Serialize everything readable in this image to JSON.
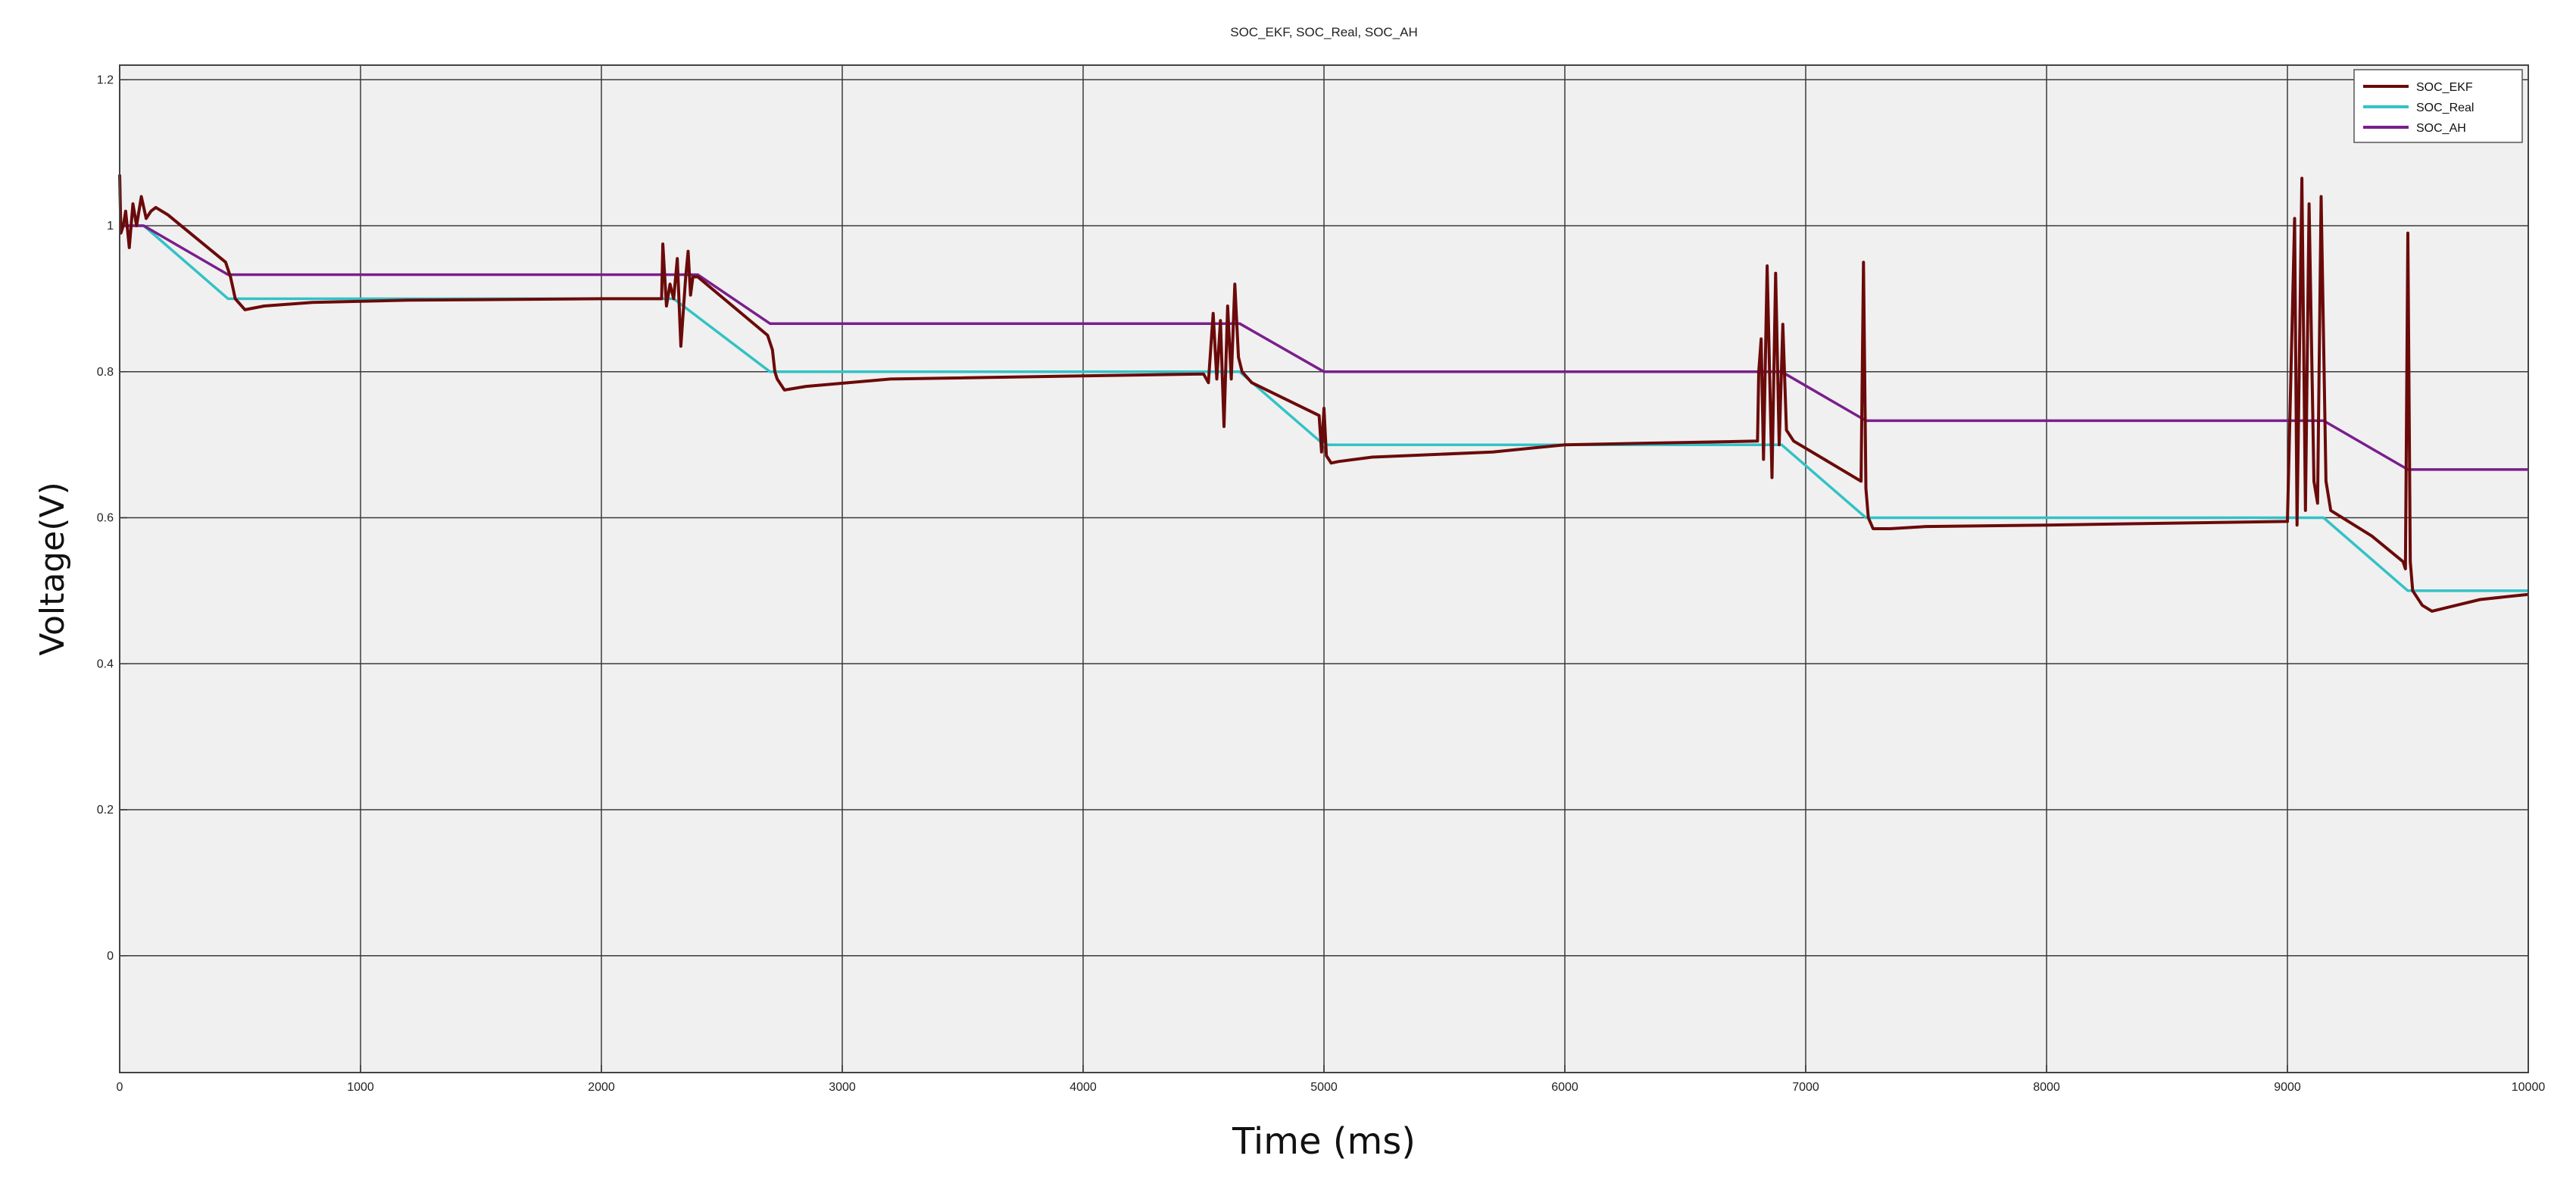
{
  "chart_data": {
    "type": "line",
    "title": "SOC_EKF, SOC_Real, SOC_AH",
    "xlabel": "Time (ms)",
    "ylabel": "Voltage(V)",
    "xlim": [
      0,
      10000
    ],
    "ylim": [
      -0.16,
      1.22
    ],
    "grid": true,
    "legend_position": "top-right",
    "x_ticks": [
      0,
      1000,
      2000,
      3000,
      4000,
      5000,
      6000,
      7000,
      8000,
      9000,
      10000
    ],
    "x_tick_labels": [
      "0",
      "1000",
      "2000",
      "3000",
      "4000",
      "5000",
      "6000",
      "7000",
      "8000",
      "9000",
      "10000"
    ],
    "y_ticks": [
      0,
      0.2,
      0.4,
      0.6,
      0.8,
      1,
      1.2
    ],
    "y_tick_labels": [
      "0",
      "0.2",
      "0.4",
      "0.6",
      "0.8",
      "1",
      "1.2"
    ],
    "series": [
      {
        "name": "SOC_Real",
        "color": "#33c2c6",
        "x": [
          0,
          100,
          450,
          2250,
          2300,
          2700,
          4500,
          4650,
          5000,
          6800,
          6900,
          7250,
          9000,
          9150,
          9500,
          10000
        ],
        "y": [
          1.0,
          1.0,
          0.9,
          0.9,
          0.9,
          0.8,
          0.8,
          0.8,
          0.7,
          0.7,
          0.7,
          0.6,
          0.6,
          0.6,
          0.5,
          0.5
        ]
      },
      {
        "name": "SOC_AH",
        "color": "#7a1e8c",
        "x": [
          0,
          100,
          450,
          2250,
          2400,
          2700,
          4500,
          4650,
          5000,
          6800,
          6900,
          7250,
          9000,
          9150,
          9500,
          10000
        ],
        "y": [
          1.0,
          1.0,
          0.933,
          0.933,
          0.933,
          0.866,
          0.866,
          0.866,
          0.8,
          0.8,
          0.8,
          0.733,
          0.733,
          0.733,
          0.666,
          0.666
        ]
      },
      {
        "name": "SOC_EKF",
        "color": "#6b0a0a",
        "x": [
          0,
          5,
          15,
          25,
          40,
          55,
          70,
          90,
          110,
          130,
          150,
          200,
          440,
          450,
          460,
          470,
          480,
          520,
          600,
          800,
          1200,
          2000,
          2250,
          2255,
          2270,
          2285,
          2300,
          2315,
          2330,
          2350,
          2360,
          2370,
          2380,
          2400,
          2690,
          2700,
          2710,
          2720,
          2730,
          2760,
          2850,
          3200,
          4500,
          4520,
          4540,
          4555,
          4570,
          4585,
          4600,
          4615,
          4630,
          4645,
          4660,
          4700,
          4980,
          4990,
          5000,
          5010,
          5030,
          5060,
          5200,
          5700,
          6000,
          6800,
          6805,
          6815,
          6825,
          6840,
          6860,
          6875,
          6890,
          6905,
          6920,
          6950,
          7230,
          7240,
          7250,
          7260,
          7280,
          7350,
          7500,
          8000,
          9000,
          9030,
          9040,
          9060,
          9075,
          9090,
          9110,
          9125,
          9140,
          9160,
          9180,
          9350,
          9480,
          9490,
          9500,
          9510,
          9520,
          9560,
          9600,
          9700,
          9800,
          10000
        ],
        "y": [
          1.07,
          0.99,
          1.0,
          1.02,
          0.97,
          1.03,
          1.0,
          1.04,
          1.01,
          1.02,
          1.025,
          1.015,
          0.95,
          0.94,
          0.93,
          0.915,
          0.9,
          0.885,
          0.89,
          0.895,
          0.898,
          0.9,
          0.9,
          0.975,
          0.89,
          0.92,
          0.9,
          0.955,
          0.835,
          0.93,
          0.965,
          0.905,
          0.93,
          0.93,
          0.85,
          0.84,
          0.83,
          0.8,
          0.79,
          0.775,
          0.78,
          0.79,
          0.797,
          0.785,
          0.88,
          0.79,
          0.87,
          0.725,
          0.89,
          0.79,
          0.92,
          0.82,
          0.8,
          0.785,
          0.74,
          0.69,
          0.75,
          0.685,
          0.675,
          0.677,
          0.683,
          0.69,
          0.7,
          0.705,
          0.8,
          0.845,
          0.68,
          0.945,
          0.655,
          0.935,
          0.7,
          0.865,
          0.72,
          0.705,
          0.65,
          0.95,
          0.64,
          0.6,
          0.585,
          0.585,
          0.588,
          0.59,
          0.595,
          1.01,
          0.59,
          1.065,
          0.61,
          1.03,
          0.65,
          0.62,
          1.04,
          0.65,
          0.61,
          0.575,
          0.54,
          0.53,
          0.99,
          0.54,
          0.5,
          0.48,
          0.472,
          0.48,
          0.488,
          0.495
        ]
      }
    ]
  }
}
